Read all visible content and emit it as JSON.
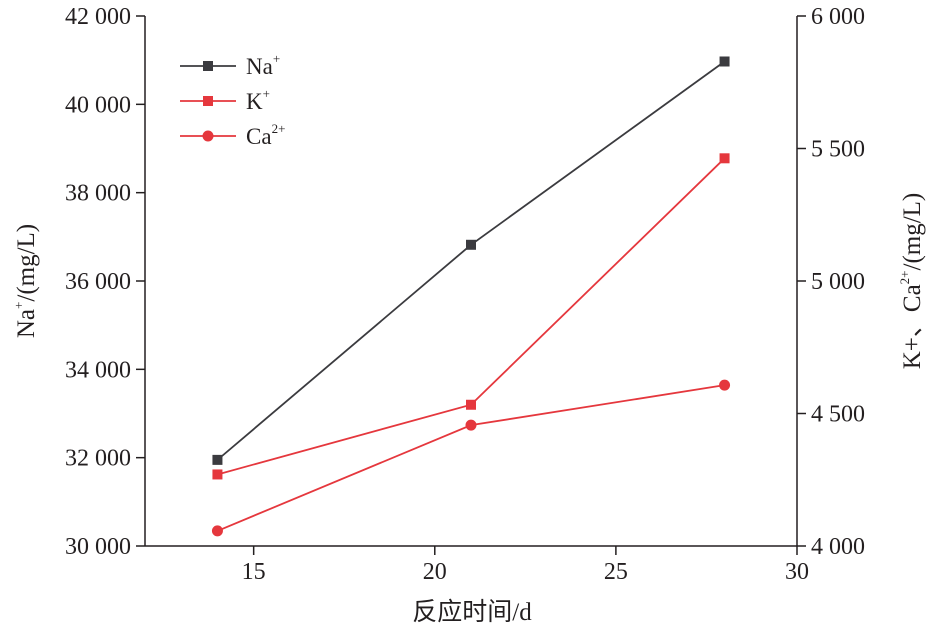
{
  "chart_data": {
    "type": "line",
    "x": [
      14,
      21,
      28
    ],
    "xlabel": "反应时间/d",
    "xlim": [
      12,
      30
    ],
    "xticks": [
      "15",
      "20",
      "25",
      "30"
    ],
    "xtick_values": [
      15,
      20,
      25,
      30
    ],
    "ylabel_left": {
      "base": "Na",
      "sup": "+",
      "rest": "/(mg/L)"
    },
    "ylim_left": [
      30000,
      42000
    ],
    "yticks_left": [
      "30 000",
      "32 000",
      "34 000",
      "36 000",
      "38 000",
      "40 000",
      "42 000"
    ],
    "ytick_values_left": [
      30000,
      32000,
      34000,
      36000,
      38000,
      40000,
      42000
    ],
    "ylabel_right": {
      "a": "K+、Ca",
      "sup": "2+",
      "rest": "/(mg/L)"
    },
    "ylim_right": [
      4000,
      6000
    ],
    "yticks_right": [
      "4 000",
      "4 500",
      "5 000",
      "5 500",
      "6 000"
    ],
    "ytick_values_right": [
      4000,
      4500,
      5000,
      5500,
      6000
    ],
    "series": [
      {
        "name": "Na",
        "sup": "+",
        "axis": "left",
        "marker": "square",
        "color": "#3b3b3f",
        "values": [
          31950,
          36820,
          40970
        ]
      },
      {
        "name": "K",
        "sup": "+",
        "axis": "right",
        "marker": "square",
        "color": "#e5373d",
        "values": [
          4270,
          4533,
          5463
        ]
      },
      {
        "name": "Ca",
        "sup": "2+",
        "axis": "right",
        "marker": "circle",
        "color": "#e5373d",
        "values": [
          4057,
          4456,
          4607
        ]
      }
    ],
    "legend_position": "top-left",
    "grid": false
  }
}
